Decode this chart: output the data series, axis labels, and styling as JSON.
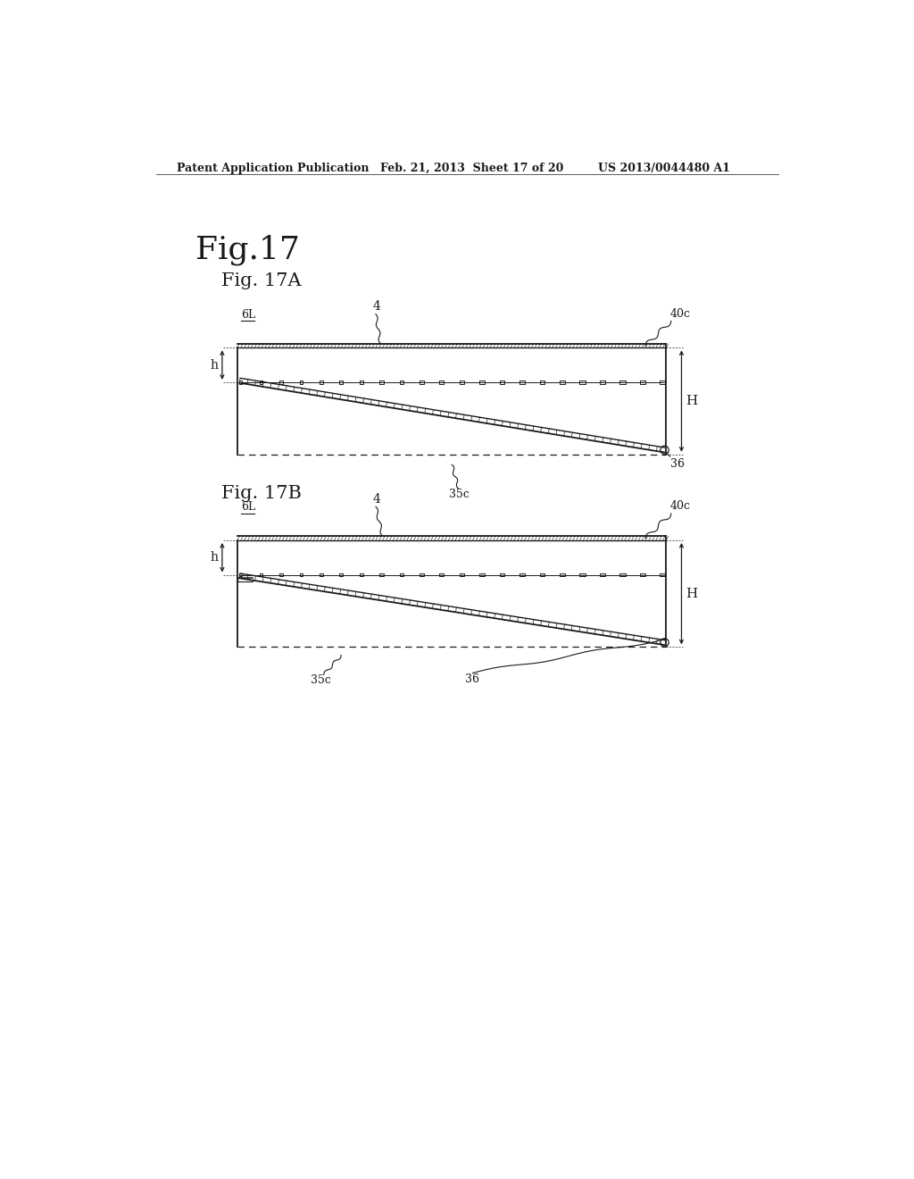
{
  "bg_color": "#ffffff",
  "header_left": "Patent Application Publication",
  "header_mid": "Feb. 21, 2013  Sheet 17 of 20",
  "header_right": "US 2013/0044480 A1",
  "fig_title": "Fig.17",
  "fig17A_label": "Fig. 17A",
  "fig17B_label": "Fig. 17B",
  "line_color": "#1a1a1a"
}
